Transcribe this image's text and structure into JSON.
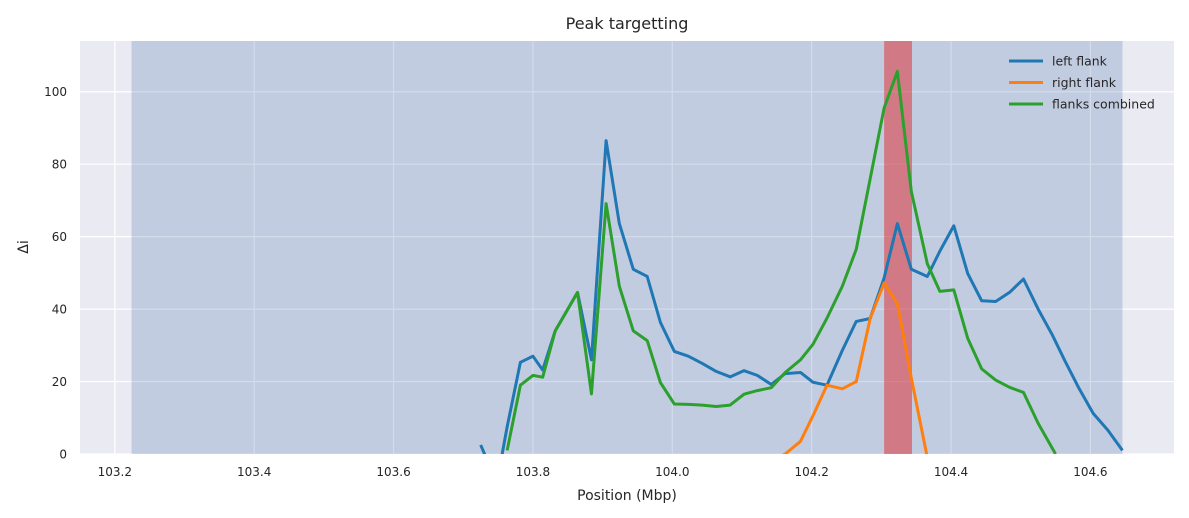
{
  "chart_data": {
    "type": "line",
    "title": "Peak targetting",
    "xlabel": "Position (Mbp)",
    "ylabel": "Δi",
    "xlim": [
      103.15,
      104.72
    ],
    "ylim": [
      0,
      114
    ],
    "xticks": [
      "103.2",
      "103.4",
      "103.6",
      "103.8",
      "104.0",
      "104.2",
      "104.4",
      "104.6"
    ],
    "yticks": [
      "0",
      "20",
      "40",
      "60",
      "80",
      "100"
    ],
    "grid": true,
    "legend_position": "top-right",
    "background_color": "#eaeaf2",
    "shaded_regions": [
      {
        "x0": 103.224,
        "x1": 104.646,
        "color": "#4c72b0",
        "opacity": 0.25
      },
      {
        "x0": 104.304,
        "x1": 104.344,
        "color": "#e0272a",
        "opacity": 0.5
      }
    ],
    "series": [
      {
        "name": "left flank",
        "color": "#1f77b4",
        "points": [
          [
            103.725,
            2.5
          ],
          [
            103.735,
            -2
          ],
          [
            103.744,
            -3
          ],
          [
            103.753,
            -3
          ],
          [
            103.763,
            7.5
          ],
          [
            103.782,
            25.3
          ],
          [
            103.8,
            27
          ],
          [
            103.814,
            23.2
          ],
          [
            103.832,
            34
          ],
          [
            103.864,
            44.6
          ],
          [
            103.884,
            26
          ],
          [
            103.905,
            86.5
          ],
          [
            103.924,
            63.6
          ],
          [
            103.944,
            51
          ],
          [
            103.964,
            49
          ],
          [
            103.983,
            36.3
          ],
          [
            104.003,
            28.3
          ],
          [
            104.023,
            27
          ],
          [
            104.043,
            25
          ],
          [
            104.063,
            22.8
          ],
          [
            104.083,
            21.3
          ],
          [
            104.103,
            23
          ],
          [
            104.122,
            21.7
          ],
          [
            104.142,
            19.2
          ],
          [
            104.162,
            22.2
          ],
          [
            104.184,
            22.5
          ],
          [
            104.202,
            19.8
          ],
          [
            104.222,
            19
          ],
          [
            104.244,
            28.6
          ],
          [
            104.264,
            36.6
          ],
          [
            104.284,
            37.4
          ],
          [
            104.304,
            48.6
          ],
          [
            104.323,
            63.6
          ],
          [
            104.343,
            51
          ],
          [
            104.366,
            49
          ],
          [
            104.384,
            56
          ],
          [
            104.404,
            63
          ],
          [
            104.424,
            49.8
          ],
          [
            104.444,
            42.3
          ],
          [
            104.464,
            42.1
          ],
          [
            104.484,
            44.6
          ],
          [
            104.504,
            48.3
          ],
          [
            104.525,
            40
          ],
          [
            104.545,
            33
          ],
          [
            104.564,
            25.5
          ],
          [
            104.584,
            18
          ],
          [
            104.604,
            11.2
          ],
          [
            104.625,
            6.6
          ],
          [
            104.646,
            1
          ]
        ]
      },
      {
        "name": "right flank",
        "color": "#ff7f0e",
        "points": [
          [
            104.152,
            -1
          ],
          [
            104.162,
            0
          ],
          [
            104.184,
            3.5
          ],
          [
            104.203,
            11
          ],
          [
            104.222,
            19
          ],
          [
            104.244,
            18
          ],
          [
            104.264,
            20
          ],
          [
            104.284,
            37.4
          ],
          [
            104.304,
            47.2
          ],
          [
            104.323,
            41.5
          ],
          [
            104.343,
            21
          ],
          [
            104.366,
            -1
          ]
        ]
      },
      {
        "name": "flanks combined",
        "color": "#2ca02c",
        "points": [
          [
            103.763,
            1
          ],
          [
            103.782,
            19
          ],
          [
            103.8,
            21.7
          ],
          [
            103.814,
            21.2
          ],
          [
            103.832,
            34
          ],
          [
            103.864,
            44.6
          ],
          [
            103.884,
            16.6
          ],
          [
            103.905,
            69.1
          ],
          [
            103.924,
            46.3
          ],
          [
            103.944,
            34
          ],
          [
            103.964,
            31.3
          ],
          [
            103.983,
            19.7
          ],
          [
            104.003,
            13.8
          ],
          [
            104.023,
            13.7
          ],
          [
            104.043,
            13.5
          ],
          [
            104.063,
            13.1
          ],
          [
            104.083,
            13.5
          ],
          [
            104.103,
            16.5
          ],
          [
            104.122,
            17.5
          ],
          [
            104.142,
            18.3
          ],
          [
            104.162,
            22.5
          ],
          [
            104.184,
            26
          ],
          [
            104.202,
            30.3
          ],
          [
            104.222,
            37.5
          ],
          [
            104.244,
            46.3
          ],
          [
            104.264,
            56.5
          ],
          [
            104.284,
            76
          ],
          [
            104.304,
            95.5
          ],
          [
            104.323,
            105.6
          ],
          [
            104.343,
            72.5
          ],
          [
            104.366,
            52.5
          ],
          [
            104.384,
            44.9
          ],
          [
            104.404,
            45.3
          ],
          [
            104.424,
            31.9
          ],
          [
            104.444,
            23.5
          ],
          [
            104.464,
            20.4
          ],
          [
            104.484,
            18.4
          ],
          [
            104.504,
            17
          ],
          [
            104.525,
            8.5
          ],
          [
            104.55,
            0
          ]
        ]
      }
    ]
  }
}
